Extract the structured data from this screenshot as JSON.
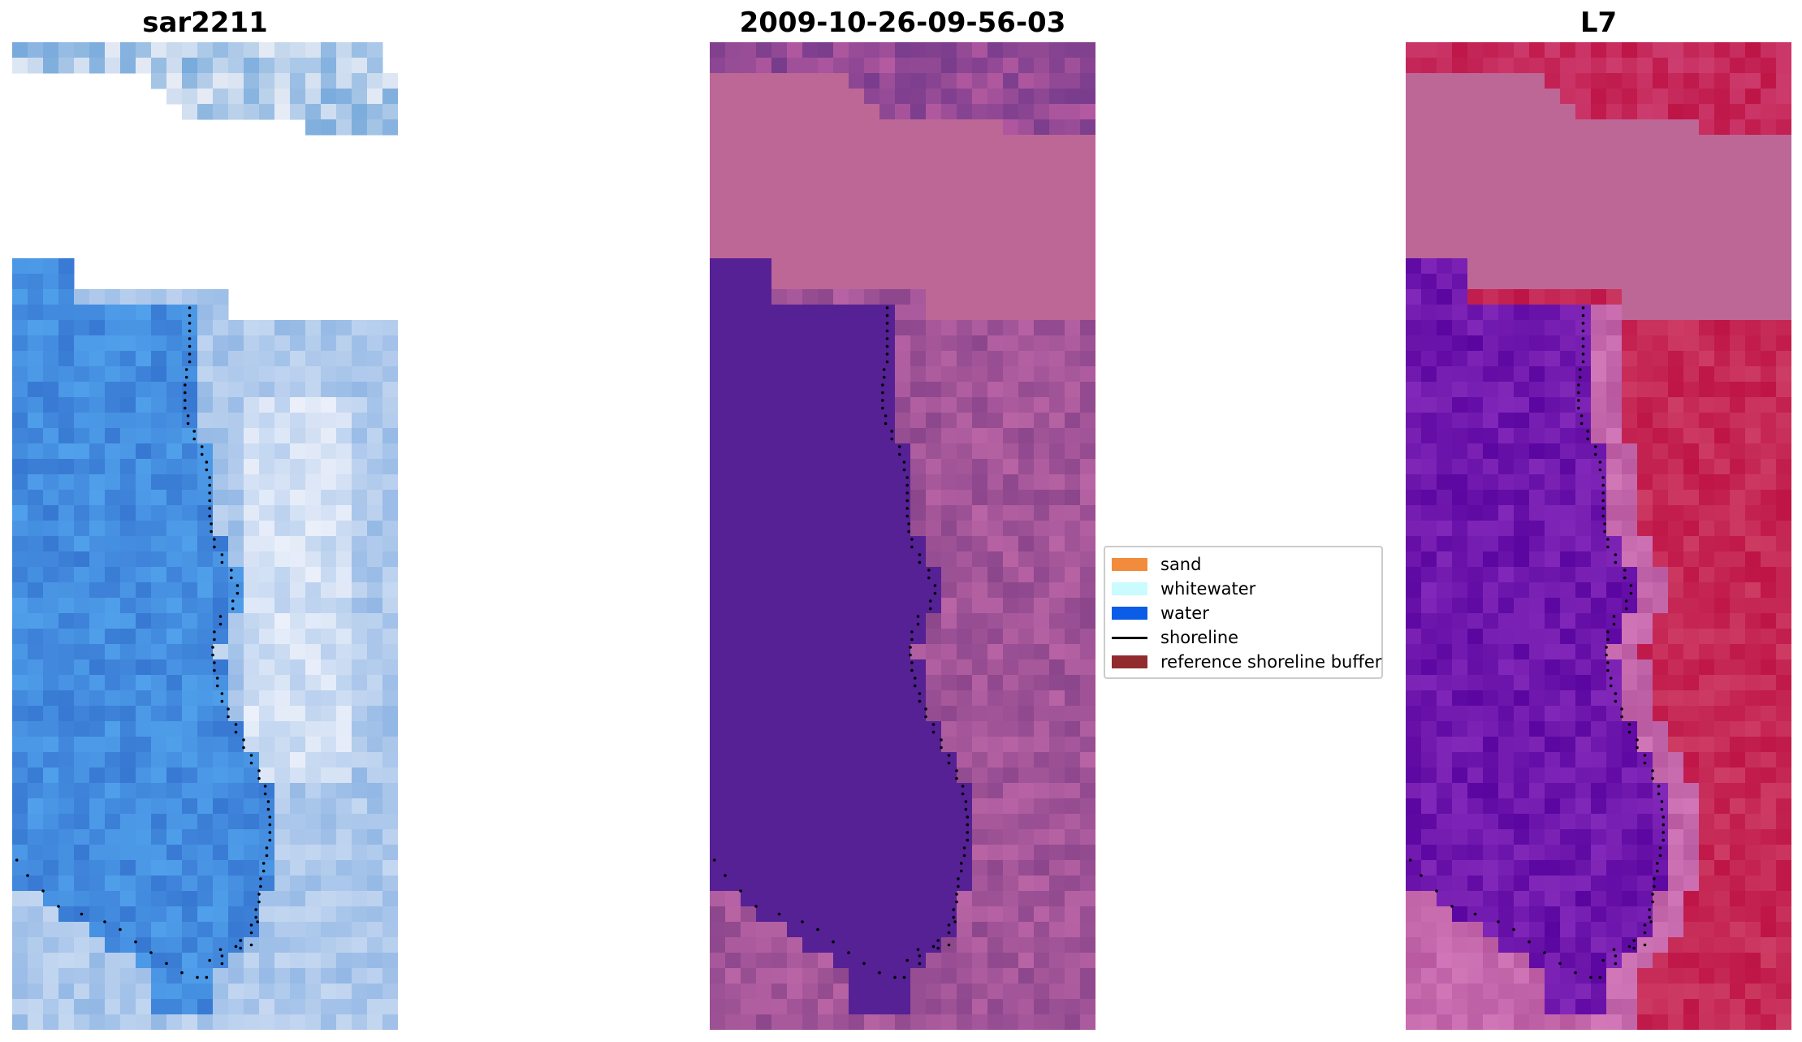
{
  "panels": {
    "rgb": {
      "title": "sar2211"
    },
    "classified": {
      "title": "2009-10-26-09-56-03"
    },
    "index": {
      "title": "L7"
    }
  },
  "legend": {
    "items": [
      {
        "label": "sand",
        "color": "#f28c3c",
        "kind": "patch"
      },
      {
        "label": "whitewater",
        "color": "#c9fbff",
        "kind": "patch"
      },
      {
        "label": "water",
        "color": "#0b5ce6",
        "kind": "patch"
      },
      {
        "label": "shoreline",
        "color": "#000000",
        "kind": "line"
      },
      {
        "label": "reference shoreline buffer",
        "color": "#922b2e",
        "kind": "patch"
      }
    ]
  },
  "colors": {
    "nodata_mask": "#bd6797",
    "water_class": "#552195",
    "shoreline_dots": "#000000"
  }
}
